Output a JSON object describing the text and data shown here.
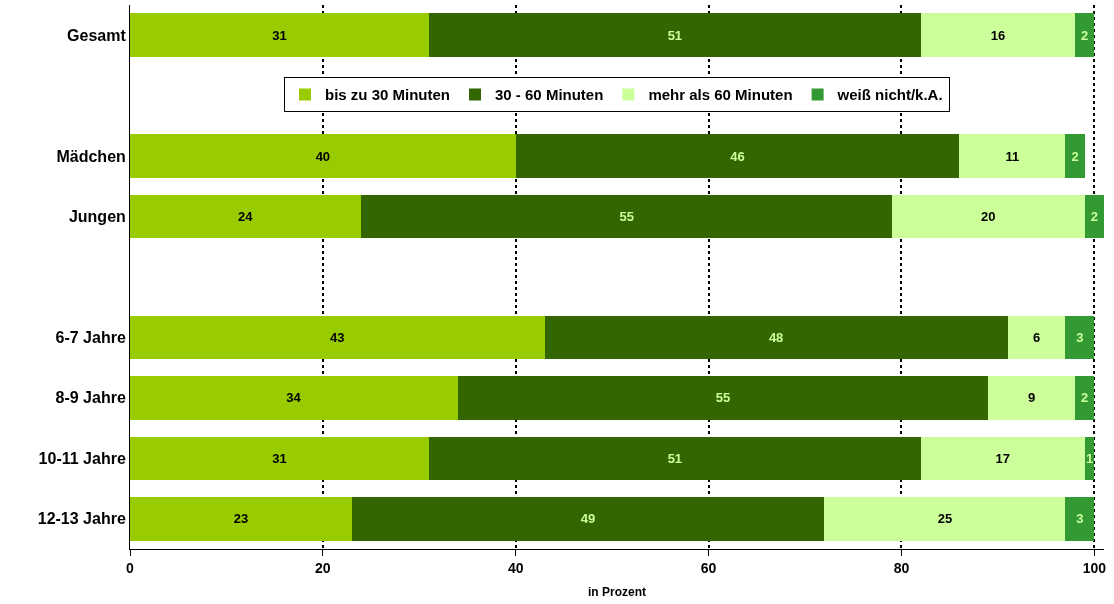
{
  "chart_data": {
    "type": "bar",
    "orientation": "horizontal",
    "stacked": true,
    "xlabel": "in Prozent",
    "categories": [
      "Gesamt",
      null,
      "Mädchen",
      "Jungen",
      null,
      "6-7 Jahre",
      "8-9 Jahre",
      "10-11 Jahre",
      "12-13 Jahre"
    ],
    "series": [
      {
        "name": "bis zu 30 Minuten",
        "color": "#99cc00",
        "values": [
          31,
          null,
          40,
          24,
          null,
          43,
          34,
          31,
          23
        ]
      },
      {
        "name": "30 - 60 Minuten",
        "color": "#336600",
        "values": [
          51,
          null,
          46,
          55,
          null,
          48,
          55,
          51,
          49
        ]
      },
      {
        "name": "mehr als 60 Minuten",
        "color": "#ccff99",
        "values": [
          16,
          null,
          11,
          20,
          null,
          6,
          9,
          17,
          25
        ]
      },
      {
        "name": "weiß nicht/k.A.",
        "color": "#339933",
        "values": [
          2,
          null,
          2,
          2,
          null,
          3,
          2,
          1,
          3
        ]
      }
    ],
    "xlim": [
      0,
      101
    ],
    "xticks": [
      0,
      20,
      40,
      60,
      80,
      100
    ],
    "grid": "x",
    "legend": "top",
    "data_labels": true
  }
}
